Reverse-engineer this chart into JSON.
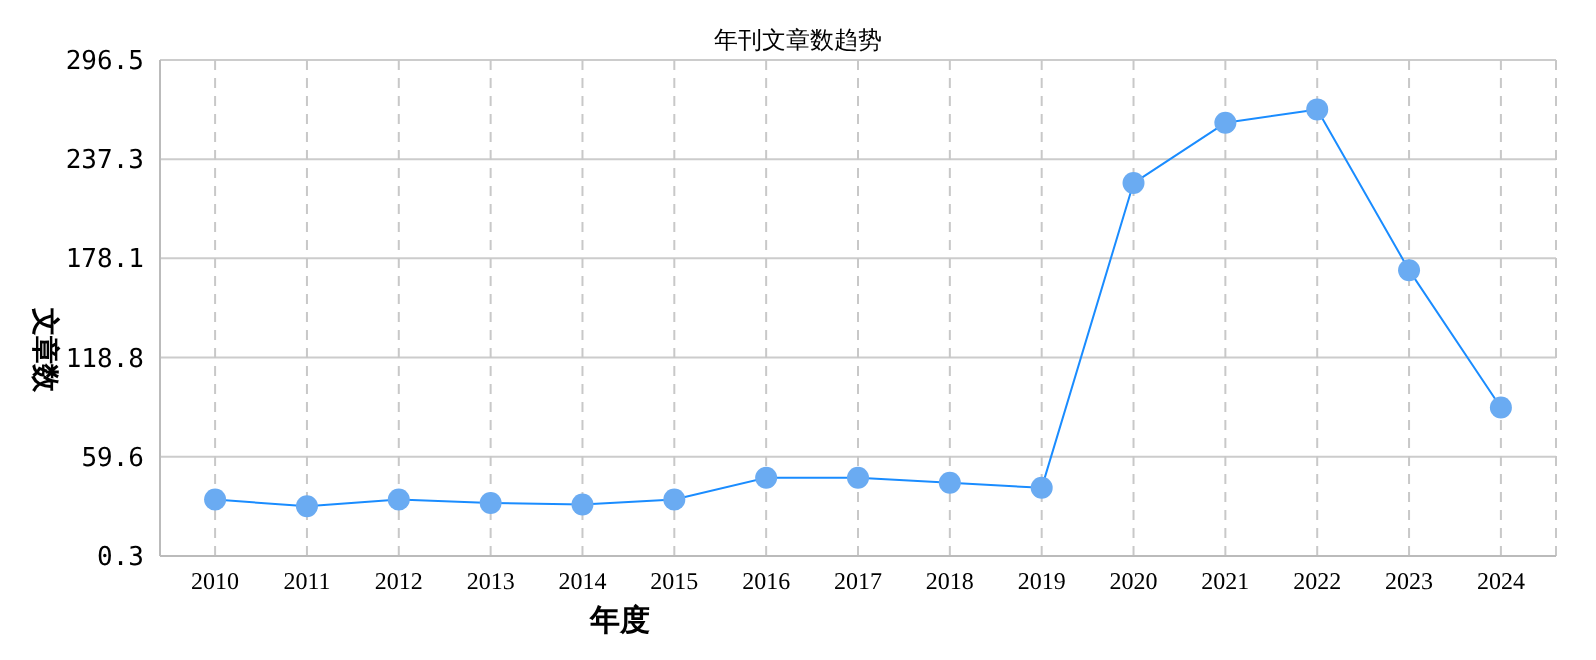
{
  "chart_data": {
    "type": "line",
    "title": "年刊文章数趋势",
    "xlabel": "年度",
    "ylabel": "文章数",
    "categories": [
      "2010",
      "2011",
      "2012",
      "2013",
      "2014",
      "2015",
      "2016",
      "2017",
      "2018",
      "2019",
      "2020",
      "2021",
      "2022",
      "2023",
      "2024"
    ],
    "series": [
      {
        "color": "#1a8cff",
        "values": [
          34,
          30,
          34,
          32,
          31,
          34,
          47,
          47,
          44,
          41,
          223,
          259,
          267,
          171,
          89
        ]
      }
    ],
    "ylim": [
      0.3,
      296.5
    ],
    "yticks": [
      0.3,
      59.6,
      118.8,
      178.1,
      237.3,
      296.5
    ],
    "grid": true,
    "marker": "circle",
    "line_style": "solid"
  }
}
